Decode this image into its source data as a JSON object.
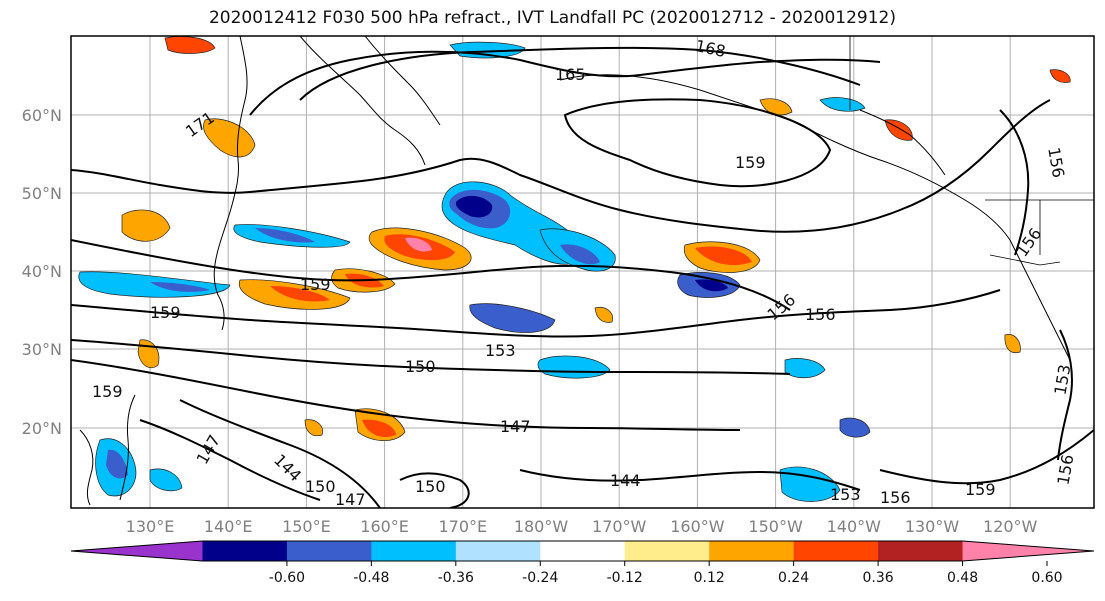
{
  "title": "2020012412 F030 500 hPa refract., IVT Landfall PC (2020012712 - 2020012912)",
  "map": {
    "lat_labels": [
      "60°N",
      "50°N",
      "40°N",
      "30°N",
      "20°N"
    ],
    "lon_labels": [
      "130°E",
      "140°E",
      "150°E",
      "160°E",
      "170°E",
      "180°W",
      "170°W",
      "160°W",
      "150°W",
      "140°W",
      "130°W",
      "120°W"
    ],
    "contour_labels": [
      "168",
      "165",
      "171",
      "159",
      "159",
      "159",
      "156",
      "156",
      "156",
      "153",
      "150",
      "147",
      "144",
      "147",
      "144",
      "150",
      "147",
      "150",
      "153",
      "156",
      "159",
      "156",
      "159",
      "156",
      "153"
    ]
  },
  "colorbar": {
    "ticks": [
      "-0.60",
      "-0.48",
      "-0.36",
      "-0.24",
      "-0.12",
      "0.12",
      "0.24",
      "0.36",
      "0.48",
      "0.60"
    ],
    "colors": [
      "#9a32cd",
      "#00008b",
      "#3a5fcd",
      "#00bfff",
      "#b0e2ff",
      "#ffffff",
      "#ffec8b",
      "#ffa500",
      "#ff4500",
      "#b22222",
      "#ff82ab"
    ]
  }
}
